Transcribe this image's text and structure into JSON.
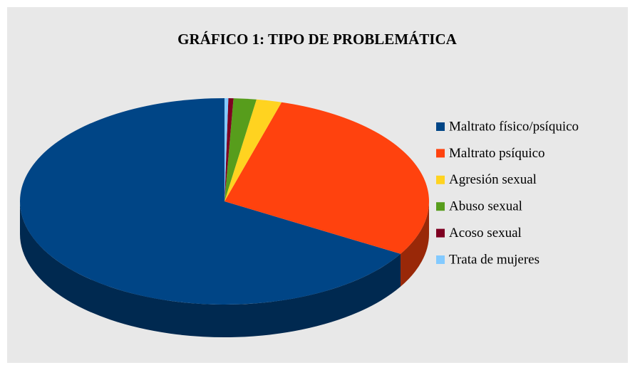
{
  "chart_data": {
    "type": "pie",
    "title": "GRÁFICO 1: TIPO DE PROBLEMÁTICA",
    "categories": [
      "Maltrato físico/psíquico",
      "Maltrato psíquico",
      "Agresión sexual",
      "Abuso sexual",
      "Acoso sexual",
      "Trata de mujeres"
    ],
    "values": [
      66.5,
      29,
      2,
      1.8,
      0.4,
      0.3
    ],
    "colors": [
      "#004586",
      "#ff420e",
      "#ffd320",
      "#579d1c",
      "#7e0021",
      "#83caff"
    ],
    "legend": "right"
  }
}
